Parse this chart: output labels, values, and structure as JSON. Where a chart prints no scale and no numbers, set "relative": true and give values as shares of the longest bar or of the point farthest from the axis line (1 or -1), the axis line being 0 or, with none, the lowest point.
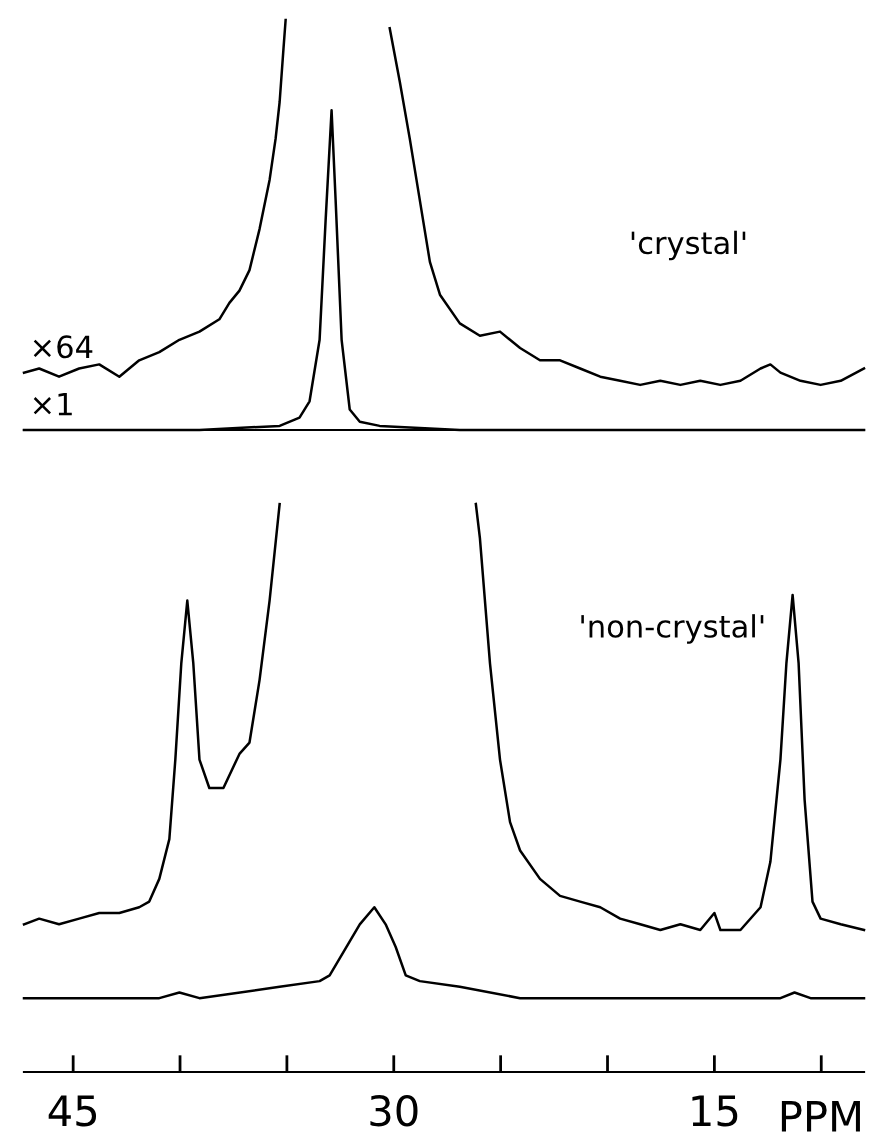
{
  "chart_data": [
    {
      "type": "line",
      "relative": true,
      "title": "'crystal'",
      "xlim": [
        47.3,
        8.0
      ],
      "tick_labels": false,
      "series": [
        {
          "name": "×64",
          "color": "#000000",
          "x": [
            47.3,
            46.59,
            45.66,
            44.72,
            43.78,
            42.84,
            41.91,
            40.97,
            40.03,
            39.09,
            38.16,
            37.69,
            37.22,
            36.75,
            36.28,
            35.81,
            35.53,
            35.34,
            35.16,
            35.06,
            33.0,
            30.19,
            29.72,
            29.25,
            28.78,
            28.31,
            27.84,
            26.91,
            25.97,
            25.03,
            24.09,
            23.16,
            22.22,
            21.28,
            20.34,
            19.41,
            18.47,
            17.53,
            16.59,
            15.66,
            14.72,
            13.78,
            12.84,
            12.38,
            11.91,
            10.97,
            10.03,
            9.09,
            8.0
          ],
          "values": [
            0.14,
            0.15,
            0.13,
            0.15,
            0.16,
            0.13,
            0.17,
            0.19,
            0.22,
            0.24,
            0.27,
            0.31,
            0.34,
            0.39,
            0.49,
            0.61,
            0.71,
            0.8,
            0.93,
            1.0,
            null,
            0.98,
            0.85,
            0.71,
            0.56,
            0.41,
            0.33,
            0.26,
            0.23,
            0.24,
            0.2,
            0.17,
            0.17,
            0.15,
            0.13,
            0.12,
            0.11,
            0.12,
            0.11,
            0.12,
            0.11,
            0.12,
            0.15,
            0.16,
            0.14,
            0.12,
            0.11,
            0.12,
            0.15
          ]
        },
        {
          "name": "×1",
          "color": "#000000",
          "x": [
            47.3,
            39.09,
            35.34,
            34.41,
            33.94,
            33.47,
            33.19,
            32.91,
            32.72,
            32.44,
            32.06,
            31.59,
            30.66,
            26.91,
            20.34,
            8.0
          ],
          "values": [
            0,
            0,
            0.01,
            0.03,
            0.07,
            0.22,
            0.51,
            0.78,
            0.56,
            0.22,
            0.05,
            0.02,
            0.01,
            0,
            0,
            0
          ]
        }
      ]
    },
    {
      "type": "line",
      "relative": true,
      "title": "'non-crystal'",
      "xlim": [
        47.3,
        8.0
      ],
      "xticks": [
        45,
        {
          "value": 40,
          "label": null
        },
        {
          "value": 35,
          "label": null
        },
        30,
        {
          "value": 25,
          "label": null
        },
        {
          "value": 20,
          "label": null
        },
        15,
        {
          "value": 10,
          "label": null
        }
      ],
      "xlabel": "PPM",
      "tick_labels": "x",
      "series": [
        {
          "color": "#000000",
          "x": [
            47.3,
            46.59,
            45.66,
            44.72,
            43.78,
            42.84,
            41.91,
            41.44,
            40.97,
            40.5,
            40.22,
            39.94,
            39.66,
            39.38,
            39.09,
            38.63,
            37.97,
            37.22,
            36.75,
            36.28,
            35.81,
            35.34,
            30.0,
            26.16,
            25.97,
            25.5,
            25.03,
            24.56,
            24.09,
            23.16,
            22.22,
            21.28,
            20.34,
            19.41,
            18.47,
            17.53,
            16.59,
            15.66,
            15.0,
            14.72,
            13.78,
            12.84,
            12.38,
            11.91,
            11.63,
            11.34,
            11.06,
            10.78,
            10.41,
            10.03,
            9.09,
            8.0
          ],
          "values": [
            0.26,
            0.27,
            0.26,
            0.27,
            0.28,
            0.28,
            0.29,
            0.3,
            0.34,
            0.41,
            0.55,
            0.72,
            0.83,
            0.72,
            0.55,
            0.5,
            0.5,
            0.56,
            0.58,
            0.69,
            0.83,
            1.0,
            null,
            1.0,
            0.94,
            0.72,
            0.55,
            0.44,
            0.39,
            0.34,
            0.31,
            0.3,
            0.29,
            0.27,
            0.26,
            0.25,
            0.26,
            0.25,
            0.28,
            0.25,
            0.25,
            0.29,
            0.37,
            0.55,
            0.72,
            0.84,
            0.72,
            0.48,
            0.3,
            0.27,
            0.26,
            0.25
          ]
        },
        {
          "color": "#000000",
          "x": [
            47.3,
            40.97,
            40.03,
            39.09,
            35.34,
            33.47,
            33.0,
            32.53,
            32.06,
            31.59,
            30.91,
            30.38,
            29.91,
            29.44,
            28.78,
            26.91,
            24.09,
            11.91,
            11.25,
            10.5,
            8.0
          ],
          "values": [
            0.13,
            0.13,
            0.14,
            0.13,
            0.15,
            0.16,
            0.17,
            0.2,
            0.23,
            0.26,
            0.29,
            0.26,
            0.22,
            0.17,
            0.16,
            0.15,
            0.13,
            0.13,
            0.14,
            0.13,
            0.13
          ]
        }
      ]
    }
  ]
}
